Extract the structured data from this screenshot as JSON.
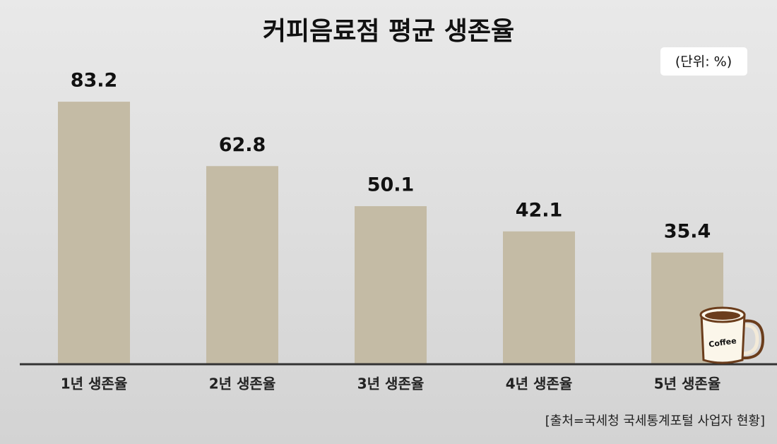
{
  "chart_data": {
    "type": "bar",
    "title": "커피음료점 평균 생존율",
    "unit_label": "(단위: %)",
    "source": "[출처=국세청 국세통계포털 사업자 현황]",
    "mug_label": "Coffee",
    "categories": [
      "1년 생존율",
      "2년 생존율",
      "3년 생존율",
      "4년 생존율",
      "5년 생존율"
    ],
    "values": [
      83.2,
      62.8,
      50.1,
      42.1,
      35.4
    ],
    "color": "#c4bba5",
    "ylim": [
      0,
      100
    ]
  }
}
